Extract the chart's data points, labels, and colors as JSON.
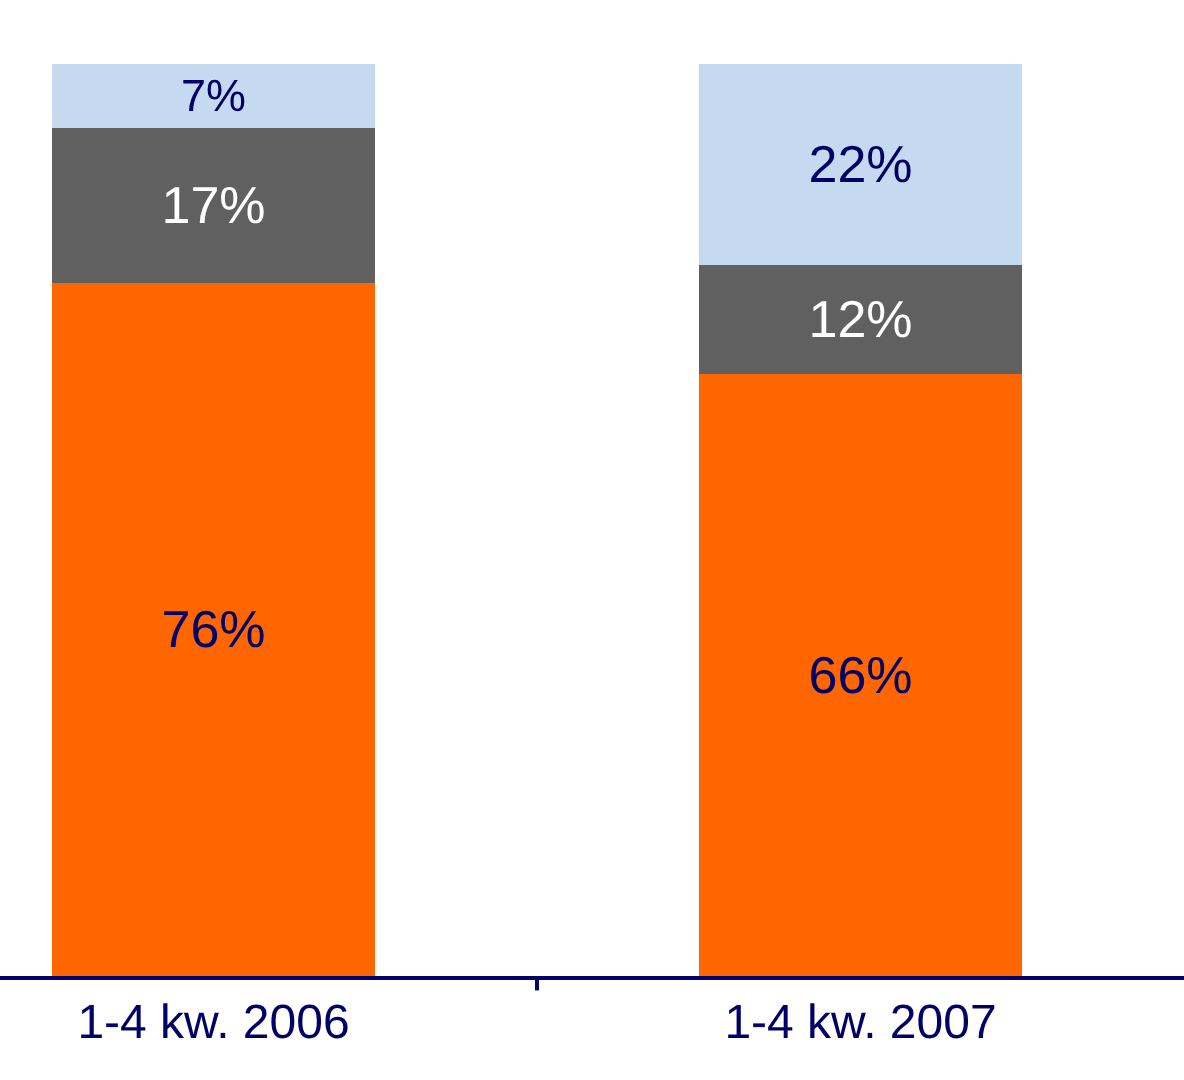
{
  "chart_data": {
    "type": "bar",
    "stacked": true,
    "categories": [
      "1-4 kw. 2006",
      "1-4 kw. 2007"
    ],
    "series": [
      {
        "color": "#ff6600",
        "values": [
          76,
          66
        ],
        "value_labels": [
          "76%",
          "66%"
        ]
      },
      {
        "color": "#606060",
        "values": [
          17,
          12
        ],
        "value_labels": [
          "17%",
          "12%"
        ]
      },
      {
        "color": "#c5daf0",
        "values": [
          7,
          22
        ],
        "value_labels": [
          "7%",
          "22%"
        ]
      }
    ]
  }
}
